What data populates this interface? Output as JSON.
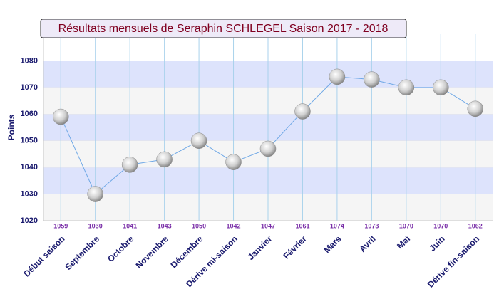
{
  "chart_data": {
    "type": "line",
    "title": "Résultats mensuels de Seraphin SCHLEGEL Saison 2017 - 2018",
    "y_label": "Points",
    "categories": [
      "Début saison",
      "Septembre",
      "Octobre",
      "Novembre",
      "Décembre",
      "Dérive mi-saison",
      "Janvier",
      "Février",
      "Mars",
      "Avril",
      "Mai",
      "Juin",
      "Dérive fin-saison"
    ],
    "values": [
      1059,
      1030,
      1041,
      1043,
      1050,
      1042,
      1047,
      1061,
      1074,
      1073,
      1070,
      1070,
      1062
    ],
    "color": "#6fa8e6",
    "ylim": [
      1020,
      1090
    ],
    "yticks": [
      1020,
      1030,
      1040,
      1050,
      1060,
      1070,
      1080
    ],
    "grid": true
  }
}
